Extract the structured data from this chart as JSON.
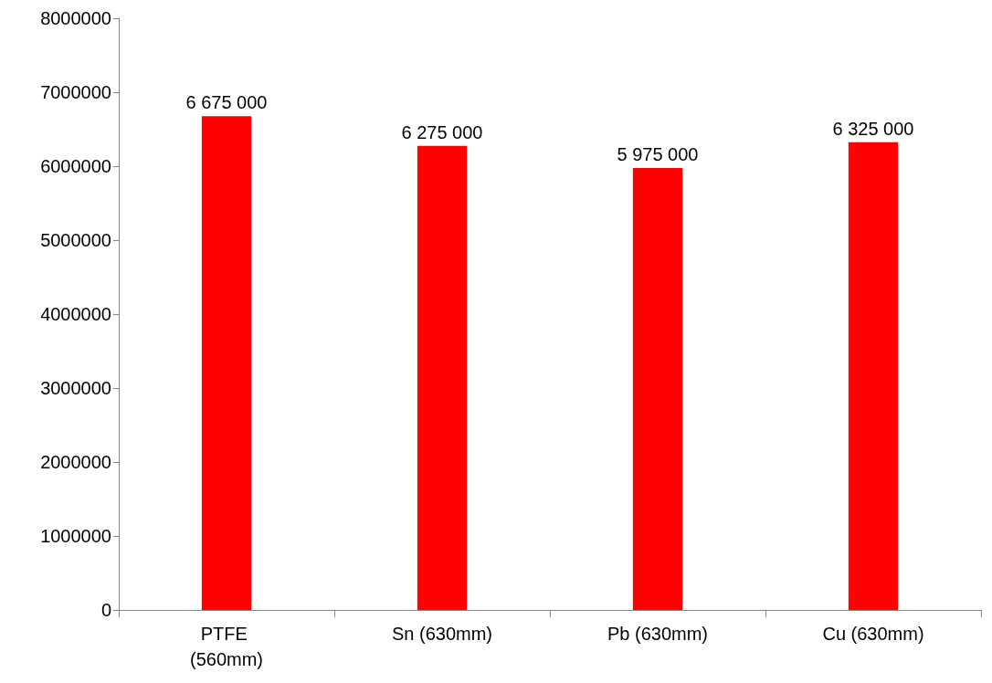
{
  "chart_data": {
    "type": "bar",
    "categories": [
      "PTFE (560mm)",
      "Sn (630mm)",
      "Pb (630mm)",
      "Cu (630mm)"
    ],
    "values": [
      6675000,
      6275000,
      5975000,
      6325000
    ],
    "color": "#ff0000",
    "value_labels": [
      "6 675 000",
      "6 275 000",
      "5 975 000",
      "6 325 000"
    ],
    "ylim": [
      0,
      8000000
    ],
    "yticks": [
      0,
      1000000,
      2000000,
      3000000,
      4000000,
      5000000,
      6000000,
      7000000,
      8000000
    ],
    "grid": false
  }
}
